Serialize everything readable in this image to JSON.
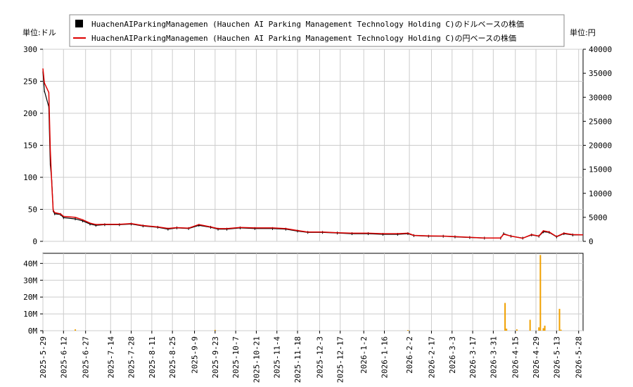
{
  "chart_data": [
    {
      "type": "line",
      "panel": "price",
      "legend": {
        "placement": "top",
        "entries": [
          {
            "label": "HuachenAIParkingManagemen (Hauchen AI Parking Management Technology Holding C)のドルベースの株価",
            "color": "#000000",
            "marker": "square"
          },
          {
            "label": "HuachenAIParkingManagemen (Hauchen AI Parking Management Technology Holding C)の円ベースの株価",
            "color": "#dd0000",
            "marker": "line"
          }
        ]
      },
      "y_left_label": "単位:ドル",
      "y_right_label": "単位:円",
      "y_left_lim": [
        0,
        300
      ],
      "y_left_ticks": [
        "0",
        "50",
        "100",
        "150",
        "200",
        "250",
        "300"
      ],
      "y_right_lim": [
        0,
        40000
      ],
      "y_right_ticks": [
        "0",
        "5000",
        "10000",
        "15000",
        "20000",
        "25000",
        "30000",
        "35000",
        "40000"
      ],
      "grid": true,
      "x_start": "2025-05-29",
      "x_end": "2026-05-31",
      "usd_series": [
        [
          "2025-05-29",
          265
        ],
        [
          "2025-05-30",
          235
        ],
        [
          "2025-06-02",
          210
        ],
        [
          "2025-06-03",
          120
        ],
        [
          "2025-06-04",
          95
        ],
        [
          "2025-06-05",
          48
        ],
        [
          "2025-06-06",
          43
        ],
        [
          "2025-06-10",
          42
        ],
        [
          "2025-06-12",
          37
        ],
        [
          "2025-06-20",
          35
        ],
        [
          "2025-06-25",
          32
        ],
        [
          "2025-06-30",
          27
        ],
        [
          "2025-07-04",
          25
        ],
        [
          "2025-07-10",
          26
        ],
        [
          "2025-07-20",
          26
        ],
        [
          "2025-07-28",
          27
        ],
        [
          "2025-08-05",
          24
        ],
        [
          "2025-08-15",
          22
        ],
        [
          "2025-08-22",
          19
        ],
        [
          "2025-08-28",
          21
        ],
        [
          "2025-09-05",
          20
        ],
        [
          "2025-09-12",
          25
        ],
        [
          "2025-09-20",
          22
        ],
        [
          "2025-09-25",
          19
        ],
        [
          "2025-10-01",
          19
        ],
        [
          "2025-10-10",
          21
        ],
        [
          "2025-10-20",
          20
        ],
        [
          "2025-11-01",
          20
        ],
        [
          "2025-11-10",
          19
        ],
        [
          "2025-11-18",
          16
        ],
        [
          "2025-11-25",
          14
        ],
        [
          "2025-12-05",
          14
        ],
        [
          "2025-12-15",
          13
        ],
        [
          "2025-12-25",
          12
        ],
        [
          "2026-01-05",
          12
        ],
        [
          "2026-01-15",
          11
        ],
        [
          "2026-01-25",
          11
        ],
        [
          "2026-02-01",
          12
        ],
        [
          "2026-02-05",
          9
        ],
        [
          "2026-02-15",
          8
        ],
        [
          "2026-02-25",
          8
        ],
        [
          "2026-03-05",
          7
        ],
        [
          "2026-03-15",
          6
        ],
        [
          "2026-03-25",
          5
        ],
        [
          "2026-04-05",
          5
        ],
        [
          "2026-04-07",
          12
        ],
        [
          "2026-04-12",
          8
        ],
        [
          "2026-04-20",
          5
        ],
        [
          "2026-04-26",
          10
        ],
        [
          "2026-05-01",
          8
        ],
        [
          "2026-05-04",
          15
        ],
        [
          "2026-05-08",
          14
        ],
        [
          "2026-05-13",
          7
        ],
        [
          "2026-05-18",
          12
        ],
        [
          "2026-05-24",
          10
        ],
        [
          "2026-05-31",
          10
        ]
      ],
      "jpy_series": [
        [
          "2025-05-29",
          36000
        ],
        [
          "2025-05-30",
          33000
        ],
        [
          "2025-06-02",
          31000
        ],
        [
          "2025-06-03",
          19000
        ],
        [
          "2025-06-04",
          12000
        ],
        [
          "2025-06-05",
          6500
        ],
        [
          "2025-06-06",
          6000
        ],
        [
          "2025-06-10",
          5700
        ],
        [
          "2025-06-12",
          5200
        ],
        [
          "2025-06-20",
          5000
        ],
        [
          "2025-06-25",
          4500
        ],
        [
          "2025-06-30",
          3800
        ],
        [
          "2025-07-04",
          3500
        ],
        [
          "2025-07-10",
          3550
        ],
        [
          "2025-07-20",
          3550
        ],
        [
          "2025-07-28",
          3700
        ],
        [
          "2025-08-05",
          3300
        ],
        [
          "2025-08-15",
          3000
        ],
        [
          "2025-08-22",
          2700
        ],
        [
          "2025-08-28",
          2850
        ],
        [
          "2025-09-05",
          2750
        ],
        [
          "2025-09-12",
          3500
        ],
        [
          "2025-09-20",
          3000
        ],
        [
          "2025-09-25",
          2650
        ],
        [
          "2025-10-01",
          2650
        ],
        [
          "2025-10-10",
          2900
        ],
        [
          "2025-10-20",
          2800
        ],
        [
          "2025-11-01",
          2800
        ],
        [
          "2025-11-10",
          2650
        ],
        [
          "2025-11-18",
          2250
        ],
        [
          "2025-11-25",
          1950
        ],
        [
          "2025-12-05",
          1950
        ],
        [
          "2025-12-15",
          1800
        ],
        [
          "2025-12-25",
          1700
        ],
        [
          "2026-01-05",
          1700
        ],
        [
          "2026-01-15",
          1600
        ],
        [
          "2026-01-25",
          1600
        ],
        [
          "2026-02-01",
          1700
        ],
        [
          "2026-02-05",
          1250
        ],
        [
          "2026-02-15",
          1150
        ],
        [
          "2026-02-25",
          1100
        ],
        [
          "2026-03-05",
          1000
        ],
        [
          "2026-03-15",
          850
        ],
        [
          "2026-03-25",
          700
        ],
        [
          "2026-04-05",
          700
        ],
        [
          "2026-04-07",
          1500
        ],
        [
          "2026-04-12",
          1100
        ],
        [
          "2026-04-20",
          650
        ],
        [
          "2026-04-26",
          1400
        ],
        [
          "2026-05-01",
          1100
        ],
        [
          "2026-05-04",
          2200
        ],
        [
          "2026-05-08",
          1950
        ],
        [
          "2026-05-13",
          1000
        ],
        [
          "2026-05-18",
          1700
        ],
        [
          "2026-05-24",
          1400
        ],
        [
          "2026-05-31",
          1350
        ]
      ]
    },
    {
      "type": "bar",
      "panel": "volume",
      "color": "#f0a000",
      "y_lim": [
        0,
        46000000
      ],
      "y_ticks": [
        {
          "value": 0,
          "label": "0M"
        },
        {
          "value": 10000000,
          "label": "10M"
        },
        {
          "value": 20000000,
          "label": "20M"
        },
        {
          "value": 30000000,
          "label": "30M"
        },
        {
          "value": 40000000,
          "label": "40M"
        }
      ],
      "x_ticks": [
        "2025-5-29",
        "2025-6-12",
        "2025-6-27",
        "2025-7-14",
        "2025-7-28",
        "2025-8-11",
        "2025-8-25",
        "2025-9-9",
        "2025-9-23",
        "2025-10-7",
        "2025-10-21",
        "2025-11-4",
        "2025-11-18",
        "2025-12-3",
        "2025-12-17",
        "2026-1-2",
        "2026-1-16",
        "2026-2-2",
        "2026-2-17",
        "2026-3-3",
        "2026-3-17",
        "2026-3-31",
        "2026-4-15",
        "2026-4-29",
        "2026-5-13",
        "2026-5-28"
      ],
      "bars": [
        [
          "2025-06-20",
          800000
        ],
        [
          "2025-09-23",
          500000
        ],
        [
          "2026-02-01",
          400000
        ],
        [
          "2026-04-08",
          16500000
        ],
        [
          "2026-04-09",
          1200000
        ],
        [
          "2026-04-16",
          800000
        ],
        [
          "2026-04-25",
          6500000
        ],
        [
          "2026-05-01",
          2000000
        ],
        [
          "2026-05-02",
          45000000
        ],
        [
          "2026-05-04",
          1500000
        ],
        [
          "2026-05-05",
          3000000
        ],
        [
          "2026-05-15",
          13000000
        ],
        [
          "2026-05-16",
          600000
        ]
      ]
    }
  ]
}
